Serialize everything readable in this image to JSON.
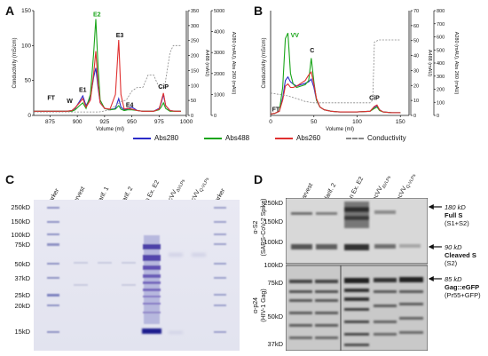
{
  "panels": {
    "a": {
      "letter": "A"
    },
    "b": {
      "letter": "B"
    },
    "c": {
      "letter": "C"
    },
    "d": {
      "letter": "D"
    }
  },
  "chart_data": [
    {
      "id": "A",
      "type": "line",
      "xlabel": "Volume (ml)",
      "ylabel_left": "Conductivity (mS/cm)",
      "ylabel_right_inner": "A488 (mAU)",
      "ylabel_right_outer": "A280 (mAU), Abs 260 (mAU)",
      "xlim": [
        860,
        1000
      ],
      "x_ticks": [
        "875",
        "900",
        "925",
        "950",
        "975",
        "1000"
      ],
      "ylim_left": [
        0,
        150
      ],
      "y_ticks_left": [
        "0",
        "50",
        "100",
        "150"
      ],
      "ylim_right_inner": [
        0,
        350
      ],
      "y_ticks_right_inner": [
        "0",
        "50",
        "100",
        "150",
        "200",
        "250",
        "300",
        "350"
      ],
      "ylim_right_outer": [
        0,
        5000
      ],
      "y_ticks_right_outer": [
        "0",
        "1000",
        "2000",
        "3000",
        "4000",
        "5000"
      ],
      "peak_labels": [
        {
          "text": "FT",
          "x": 876,
          "y": 22,
          "color": "#111"
        },
        {
          "text": "W",
          "x": 893,
          "y": 18,
          "color": "#111"
        },
        {
          "text": "E1",
          "x": 905,
          "y": 34,
          "color": "#111"
        },
        {
          "text": "E2",
          "x": 918,
          "y": 142,
          "color": "#1aa51a"
        },
        {
          "text": "E3",
          "x": 939,
          "y": 112,
          "color": "#111"
        },
        {
          "text": "E4",
          "x": 948,
          "y": 12,
          "color": "#111"
        },
        {
          "text": "CiP",
          "x": 979,
          "y": 38,
          "color": "#111"
        }
      ],
      "series": [
        {
          "name": "Abs280",
          "color": "#2b2bc8",
          "x": [
            860,
            870,
            880,
            890,
            895,
            898,
            902,
            905,
            908,
            912,
            915,
            917,
            919,
            921,
            925,
            930,
            935,
            938,
            940,
            943,
            946,
            950,
            955,
            960,
            965,
            970,
            975,
            977,
            979,
            981,
            985,
            990,
            995
          ],
          "y": [
            6,
            6,
            6,
            6,
            7,
            10,
            20,
            28,
            14,
            25,
            55,
            68,
            40,
            18,
            10,
            8,
            10,
            24,
            12,
            8,
            9,
            12,
            7,
            6,
            6,
            6,
            10,
            18,
            30,
            14,
            7,
            6,
            6
          ]
        },
        {
          "name": "Abs488",
          "color": "#1aa51a",
          "x": [
            860,
            870,
            880,
            890,
            895,
            898,
            902,
            905,
            908,
            912,
            915,
            917,
            919,
            921,
            925,
            930,
            935,
            938,
            940,
            943,
            946,
            950,
            955,
            960,
            965,
            970,
            975,
            977,
            979,
            981,
            985,
            990,
            995
          ],
          "y": [
            6,
            6,
            6,
            6,
            6,
            8,
            14,
            18,
            10,
            30,
            90,
            138,
            70,
            22,
            10,
            8,
            9,
            14,
            9,
            7,
            8,
            8,
            7,
            6,
            6,
            6,
            8,
            12,
            18,
            10,
            6,
            6,
            6
          ]
        },
        {
          "name": "Abs260",
          "color": "#e03030",
          "x": [
            860,
            870,
            880,
            890,
            895,
            898,
            902,
            905,
            908,
            912,
            915,
            917,
            919,
            921,
            925,
            930,
            935,
            938,
            940,
            943,
            946,
            950,
            955,
            960,
            965,
            970,
            975,
            977,
            979,
            981,
            985,
            990,
            995
          ],
          "y": [
            6,
            6,
            6,
            6,
            7,
            11,
            18,
            24,
            12,
            22,
            60,
            92,
            45,
            18,
            10,
            9,
            30,
            108,
            30,
            9,
            10,
            9,
            7,
            6,
            6,
            6,
            9,
            20,
            32,
            14,
            7,
            6,
            6
          ]
        },
        {
          "name": "Conductivity",
          "color": "#888888",
          "x": [
            860,
            870,
            880,
            890,
            900,
            905,
            910,
            920,
            930,
            940,
            945,
            950,
            955,
            960,
            965,
            970,
            975,
            980,
            985,
            988,
            990,
            995
          ],
          "y": [
            5,
            5,
            5,
            5,
            5,
            5,
            5,
            5,
            8,
            20,
            22,
            35,
            40,
            40,
            58,
            58,
            40,
            40,
            90,
            100,
            100,
            100
          ]
        }
      ]
    },
    {
      "id": "B",
      "type": "line",
      "xlabel": "Volume (ml)",
      "ylabel_left": "Conductivity (mS/cm)",
      "ylabel_right_inner": "A488 (mAU)",
      "ylabel_right_outer": "A280 (mAU), Abs 260 (mAU)",
      "xlim": [
        0,
        160
      ],
      "x_ticks": [
        "0",
        "50",
        "100",
        "150"
      ],
      "ylim_right_inner": [
        0,
        70
      ],
      "y_ticks_right_inner": [
        "0",
        "10",
        "20",
        "30",
        "40",
        "50",
        "60",
        "70"
      ],
      "ylim_right_outer": [
        0,
        800
      ],
      "y_ticks_right_outer": [
        "0",
        "100",
        "200",
        "300",
        "400",
        "500",
        "600",
        "700",
        "800"
      ],
      "peak_labels": [
        {
          "text": "VV",
          "x": 28,
          "y": 112,
          "color": "#1aa51a"
        },
        {
          "text": "C",
          "x": 48,
          "y": 90,
          "color": "#111"
        },
        {
          "text": "FT",
          "x": 6,
          "y": 6,
          "color": "#111"
        },
        {
          "text": "CiP",
          "x": 120,
          "y": 22,
          "color": "#111"
        }
      ],
      "series": [
        {
          "name": "Abs280",
          "color": "#2b2bc8",
          "x": [
            0,
            5,
            10,
            14,
            17,
            20,
            23,
            26,
            30,
            35,
            40,
            44,
            47,
            50,
            53,
            57,
            62,
            70,
            80,
            100,
            115,
            120,
            123,
            126,
            130,
            140,
            150
          ],
          "y": [
            2,
            3,
            6,
            25,
            50,
            55,
            48,
            45,
            42,
            44,
            46,
            48,
            52,
            40,
            22,
            12,
            8,
            6,
            5,
            5,
            6,
            12,
            14,
            8,
            5,
            4,
            4
          ]
        },
        {
          "name": "Abs488",
          "color": "#1aa51a",
          "x": [
            0,
            5,
            10,
            14,
            17,
            20,
            23,
            26,
            30,
            35,
            40,
            44,
            47,
            50,
            53,
            57,
            62,
            70,
            80,
            100,
            115,
            120,
            123,
            126,
            130,
            140,
            150
          ],
          "y": [
            2,
            3,
            6,
            40,
            110,
            118,
            60,
            45,
            40,
            42,
            44,
            50,
            82,
            48,
            22,
            12,
            8,
            6,
            5,
            5,
            6,
            10,
            12,
            7,
            5,
            4,
            4
          ]
        },
        {
          "name": "Abs260",
          "color": "#e03030",
          "x": [
            0,
            5,
            10,
            14,
            17,
            20,
            23,
            26,
            30,
            35,
            40,
            44,
            47,
            50,
            53,
            57,
            62,
            70,
            80,
            100,
            115,
            120,
            123,
            126,
            130,
            140,
            150
          ],
          "y": [
            2,
            3,
            6,
            22,
            42,
            45,
            40,
            40,
            42,
            46,
            50,
            58,
            62,
            45,
            24,
            12,
            8,
            6,
            5,
            5,
            6,
            13,
            15,
            8,
            5,
            4,
            4
          ]
        },
        {
          "name": "Conductivity",
          "color": "#888888",
          "x": [
            0,
            10,
            20,
            30,
            40,
            50,
            60,
            70,
            80,
            90,
            100,
            110,
            115,
            118,
            120,
            125,
            130,
            150
          ],
          "y": [
            32,
            30,
            28,
            24,
            20,
            18,
            18,
            18,
            18,
            18,
            18,
            18,
            18,
            22,
            105,
            108,
            108,
            108
          ]
        }
      ]
    }
  ],
  "legend": [
    {
      "label": "Abs280",
      "color": "#2b2bc8"
    },
    {
      "label": "Abs488",
      "color": "#1aa51a"
    },
    {
      "label": "Abs260",
      "color": "#e03030"
    },
    {
      "label": "Conductivity",
      "color": "#888888"
    }
  ],
  "gel_c": {
    "lanes": [
      "Marker",
      "Harvest",
      "Clarif. 1",
      "Clarif. 2",
      "Ion Ex. E2",
      "SecVV",
      "SecVV",
      "Marker"
    ],
    "lane_subscripts": [
      "",
      "",
      "",
      "",
      "",
      "ΔVLPs",
      "Q-VLPs",
      ""
    ],
    "mw": [
      "250kD",
      "150kD",
      "100kD",
      "75kD",
      "50kD",
      "37kD",
      "25kD",
      "20kD",
      "15kD"
    ]
  },
  "blot_d": {
    "lanes": [
      "Harvest",
      "Clarif. 2",
      "Ion Ex. E2",
      "SecVV",
      "SecVV"
    ],
    "lane_subscripts": [
      "",
      "",
      "",
      "ΔVLPs",
      "Q-VLPs"
    ],
    "top_mw": [
      "250kD",
      "150kD",
      "100kD"
    ],
    "bottom_mw": [
      "100kD",
      "75kD",
      "50kD",
      "37kD"
    ],
    "top_ylabel": "α-S2",
    "top_ylabel_sub": "(SARS-CoV-2 Spike)",
    "bottom_ylabel": "α-p24",
    "bottom_ylabel_sub": "(HIV-1 Gag)",
    "annotations": [
      {
        "size": "180 kD",
        "name": "Full S",
        "sub": "(S1+S2)"
      },
      {
        "size": "90 kD",
        "name": "Cleaved S",
        "sub": "(S2)"
      },
      {
        "size": "85 kD",
        "name": "Gag::eGFP",
        "sub": "(Pr55+GFP)"
      }
    ]
  }
}
